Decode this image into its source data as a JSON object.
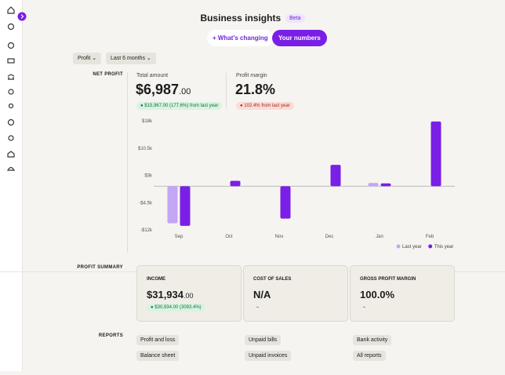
{
  "header": {
    "title": "Business insights",
    "badge": "Beta"
  },
  "tabs": [
    "What's changing",
    "Your numbers"
  ],
  "filters": [
    "Profit",
    "Last 6 months"
  ],
  "net_profit": {
    "label": "NET PROFIT",
    "total": {
      "label": "Total amount",
      "value": "$6,987",
      "cents": ".00",
      "change": "$15,967.00 (177.6%) from last year"
    },
    "margin": {
      "label": "Profit margin",
      "value": "21.8%",
      "change": "102.4% from last year"
    }
  },
  "chart_data": {
    "type": "bar",
    "categories": [
      "Sep",
      "Oct",
      "Nov",
      "Dec",
      "Jan",
      "Feb"
    ],
    "series": [
      {
        "name": "Last year",
        "color": "#c3a6f4",
        "values": [
          -10200,
          null,
          null,
          null,
          900,
          null
        ]
      },
      {
        "name": "This year",
        "color": "#7a1fe6",
        "values": [
          -10900,
          1500,
          -8900,
          5900,
          800,
          17800
        ]
      }
    ],
    "ylim": [
      -12000,
      18000
    ],
    "yticks": [
      {
        "value": -12000,
        "label": "-$12k"
      },
      {
        "value": -4500,
        "label": "-$4.5k"
      },
      {
        "value": 3000,
        "label": "$3k"
      },
      {
        "value": 10500,
        "label": "$10.5k"
      },
      {
        "value": 18000,
        "label": "$18k"
      }
    ],
    "grid": false,
    "legend": "bottom-right"
  },
  "profit_summary": {
    "label": "PROFIT SUMMARY",
    "cards": [
      {
        "title": "INCOME",
        "value": "$31,934",
        "cents": ".00",
        "change": "$30,934.00 (3093.4%)"
      },
      {
        "title": "COST OF SALES",
        "value": "N/A"
      },
      {
        "title": "GROSS PROFIT MARGIN",
        "value": "100.0%"
      }
    ]
  },
  "reports": {
    "label": "REPORTS",
    "items": [
      "Profit and loss",
      "Unpaid bills",
      "Bank activity",
      "Balance sheet",
      "Unpaid invoices",
      "All reports"
    ]
  }
}
